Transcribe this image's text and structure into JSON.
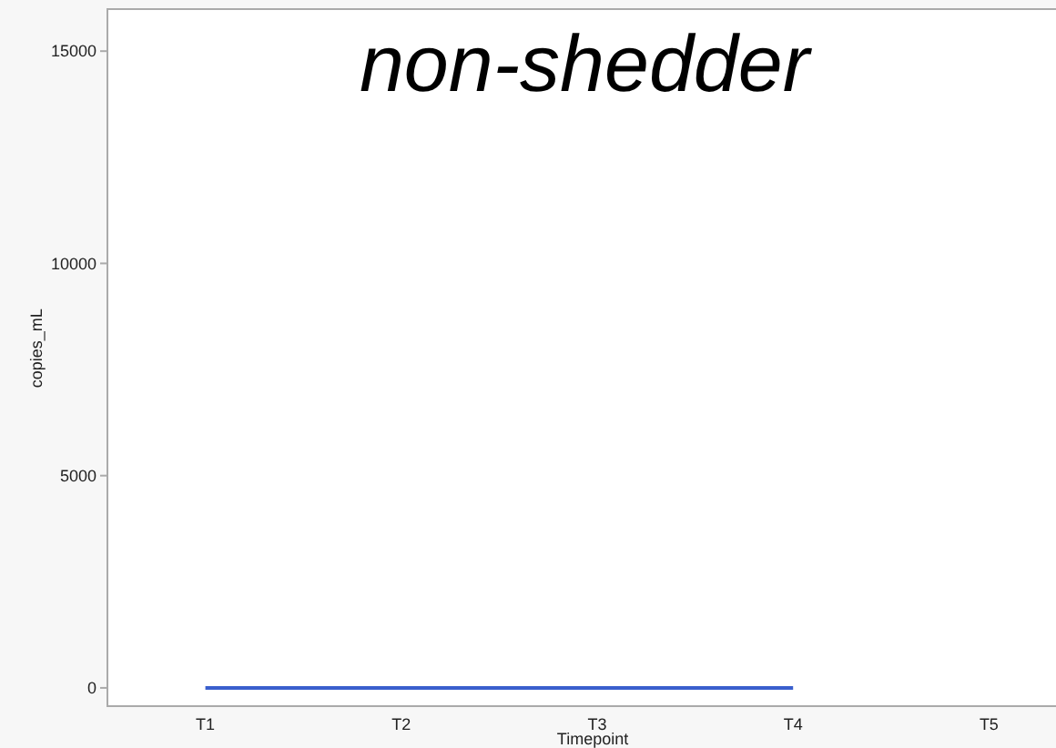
{
  "chart_data": {
    "type": "line",
    "title": "non-shedder",
    "xlabel": "Timepoint",
    "ylabel": "copies_mL",
    "categories": [
      "T1",
      "T2",
      "T3",
      "T4",
      "T5"
    ],
    "series": [
      {
        "color": "#3a5fcd",
        "values": [
          0,
          0,
          0,
          0,
          null
        ]
      }
    ],
    "ylim": [
      -430,
      15990
    ],
    "yticks": [
      0,
      5000,
      10000,
      15000
    ],
    "grid": false,
    "marker": "none",
    "line_style": "solid"
  }
}
